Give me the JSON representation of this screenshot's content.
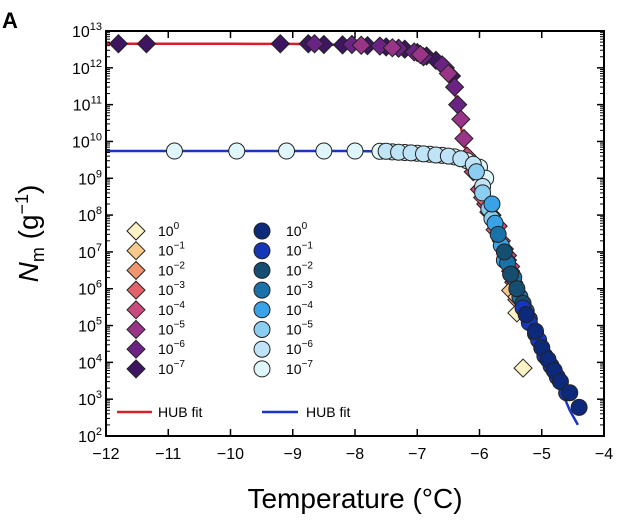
{
  "panel_label": "A",
  "chart_data": {
    "type": "scatter",
    "xlabel": "Temperature (°C)",
    "ylabel": {
      "symbol": "N",
      "subscript": "m",
      "unit_open": " (g",
      "unit_exp": "−1",
      "unit_close": ")"
    },
    "xlim": [
      -12,
      -4
    ],
    "ylim_log10": [
      2,
      13
    ],
    "y_scale": "log",
    "x_ticks": [
      -12,
      -11,
      -10,
      -9,
      -8,
      -7,
      -6,
      -5,
      -4
    ],
    "x_tick_labels": [
      "−12",
      "−11",
      "−10",
      "−9",
      "−8",
      "−7",
      "−6",
      "−5",
      "−4"
    ],
    "y_ticks_exp": [
      2,
      3,
      4,
      5,
      6,
      7,
      8,
      9,
      10,
      11,
      12,
      13
    ],
    "y_tick_labels": [
      {
        "base": "10",
        "exp": "2"
      },
      {
        "base": "10",
        "exp": "3"
      },
      {
        "base": "10",
        "exp": "4"
      },
      {
        "base": "10",
        "exp": "5"
      },
      {
        "base": "10",
        "exp": "6"
      },
      {
        "base": "10",
        "exp": "7"
      },
      {
        "base": "10",
        "exp": "8"
      },
      {
        "base": "10",
        "exp": "9"
      },
      {
        "base": "10",
        "exp": "10"
      },
      {
        "base": "10",
        "exp": "11"
      },
      {
        "base": "10",
        "exp": "12"
      },
      {
        "base": "10",
        "exp": "13"
      }
    ],
    "grid": false,
    "legend_position": "bottom-left",
    "legend_left": [
      {
        "base": "10",
        "exp": "0",
        "color": "#fdf3c4"
      },
      {
        "base": "10",
        "exp": "−1",
        "color": "#f8c98a"
      },
      {
        "base": "10",
        "exp": "−2",
        "color": "#f0956e"
      },
      {
        "base": "10",
        "exp": "−3",
        "color": "#e3636a"
      },
      {
        "base": "10",
        "exp": "−4",
        "color": "#c94a7c"
      },
      {
        "base": "10",
        "exp": "−5",
        "color": "#9a3488"
      },
      {
        "base": "10",
        "exp": "−6",
        "color": "#6a2383"
      },
      {
        "base": "10",
        "exp": "−7",
        "color": "#3d1560"
      }
    ],
    "legend_right": [
      {
        "base": "10",
        "exp": "0",
        "color": "#0d2a7a"
      },
      {
        "base": "10",
        "exp": "−1",
        "color": "#1636b8"
      },
      {
        "base": "10",
        "exp": "−2",
        "color": "#154e70"
      },
      {
        "base": "10",
        "exp": "−3",
        "color": "#1a72a8"
      },
      {
        "base": "10",
        "exp": "−4",
        "color": "#3aa2e6"
      },
      {
        "base": "10",
        "exp": "−5",
        "color": "#8ccdf2"
      },
      {
        "base": "10",
        "exp": "−6",
        "color": "#bfe3f7"
      },
      {
        "base": "10",
        "exp": "−7",
        "color": "#dff7fb"
      }
    ],
    "fit_legend": [
      {
        "label": "HUB fit",
        "color": "#d6202a"
      },
      {
        "label": "HUB fit",
        "color": "#1b33c8"
      }
    ],
    "series": [
      {
        "marker": "diamond",
        "color": "#3d1560",
        "points": [
          [
            -11.8,
            4500000000000.0
          ],
          [
            -11.35,
            4500000000000.0
          ],
          [
            -9.2,
            4500000000000.0
          ],
          [
            -8.75,
            4500000000000.0
          ],
          [
            -8.5,
            4300000000000.0
          ],
          [
            -8.2,
            4200000000000.0
          ],
          [
            -7.8,
            4000000000000.0
          ],
          [
            -7.5,
            3700000000000.0
          ],
          [
            -7.2,
            3200000000000.0
          ],
          [
            -7.0,
            2600000000000.0
          ],
          [
            -6.85,
            2100000000000.0
          ],
          [
            -6.7,
            1600000000000.0
          ],
          [
            -6.55,
            1000000000000.0
          ],
          [
            -6.45,
            600000000000.0
          ]
        ]
      },
      {
        "marker": "diamond",
        "color": "#6a2383",
        "points": [
          [
            -8.65,
            4500000000000.0
          ],
          [
            -8.05,
            4300000000000.0
          ],
          [
            -7.6,
            3900000000000.0
          ],
          [
            -7.3,
            3400000000000.0
          ],
          [
            -7.05,
            2700000000000.0
          ],
          [
            -6.9,
            2000000000000.0
          ],
          [
            -6.6,
            1200000000000.0
          ],
          [
            -6.4,
            300000000000.0
          ],
          [
            -6.35,
            100000000000.0
          ]
        ]
      },
      {
        "marker": "diamond",
        "color": "#9a3488",
        "points": [
          [
            -7.9,
            4100000000000.0
          ],
          [
            -7.4,
            3500000000000.0
          ],
          [
            -6.95,
            2300000000000.0
          ],
          [
            -6.5,
            700000000000.0
          ],
          [
            -6.3,
            40000000000.0
          ],
          [
            -6.25,
            12000000000.0
          ]
        ]
      },
      {
        "marker": "diamond",
        "color": "#c94a7c",
        "points": [
          [
            -6.2,
            4000000000.0
          ],
          [
            -6.1,
            1500000000.0
          ],
          [
            -6.0,
            500000000.0
          ],
          [
            -5.9,
            200000000.0
          ],
          [
            -5.8,
            100000000.0
          ],
          [
            -5.7,
            50000000.0
          ],
          [
            -5.65,
            20000000.0
          ],
          [
            -5.55,
            8000000.0
          ],
          [
            -5.5,
            4000000.0
          ]
        ]
      },
      {
        "marker": "diamond",
        "color": "#e3636a",
        "points": [
          [
            -5.95,
            300000000.0
          ],
          [
            -5.85,
            120000000.0
          ],
          [
            -5.75,
            40000000.0
          ],
          [
            -5.6,
            12000000.0
          ],
          [
            -5.5,
            3000000.0
          ],
          [
            -5.45,
            1500000.0
          ]
        ]
      },
      {
        "marker": "diamond",
        "color": "#f0956e",
        "points": [
          [
            -5.55,
            6000000.0
          ],
          [
            -5.45,
            1000000.0
          ],
          [
            -5.4,
            500000.0
          ]
        ]
      },
      {
        "marker": "diamond",
        "color": "#f8c98a",
        "points": [
          [
            -5.5,
            900000.0
          ],
          [
            -5.4,
            600000.0
          ]
        ]
      },
      {
        "marker": "diamond",
        "color": "#fdf3c4",
        "points": [
          [
            -5.4,
            220000.0
          ],
          [
            -5.3,
            7000.0
          ]
        ]
      },
      {
        "marker": "circle",
        "color": "#dff7fb",
        "points": [
          [
            -10.9,
            5500000000.0
          ],
          [
            -9.9,
            5500000000.0
          ],
          [
            -9.1,
            5500000000.0
          ],
          [
            -8.5,
            5500000000.0
          ],
          [
            -8.0,
            5500000000.0
          ],
          [
            -7.6,
            5400000000.0
          ],
          [
            -7.4,
            5200000000.0
          ],
          [
            -7.2,
            5000000000.0
          ],
          [
            -7.0,
            4800000000.0
          ],
          [
            -6.8,
            4500000000.0
          ],
          [
            -6.6,
            4200000000.0
          ],
          [
            -6.4,
            3800000000.0
          ],
          [
            -6.2,
            3000000000.0
          ],
          [
            -6.0,
            2000000000.0
          ],
          [
            -5.9,
            1000000000.0
          ]
        ]
      },
      {
        "marker": "circle",
        "color": "#bfe3f7",
        "points": [
          [
            -7.5,
            5400000000.0
          ],
          [
            -7.3,
            5100000000.0
          ],
          [
            -7.1,
            4900000000.0
          ],
          [
            -6.9,
            4600000000.0
          ],
          [
            -6.7,
            4300000000.0
          ],
          [
            -6.5,
            4000000000.0
          ],
          [
            -6.3,
            3400000000.0
          ],
          [
            -6.1,
            2400000000.0
          ],
          [
            -5.95,
            600000000.0
          ]
        ]
      },
      {
        "marker": "circle",
        "color": "#8ccdf2",
        "points": [
          [
            -6.05,
            1500000000.0
          ],
          [
            -5.95,
            400000000.0
          ],
          [
            -5.85,
            150000000.0
          ],
          [
            -5.8,
            80000000.0
          ]
        ]
      },
      {
        "marker": "circle",
        "color": "#3aa2e6",
        "points": [
          [
            -5.8,
            200000000.0
          ],
          [
            -5.75,
            60000000.0
          ],
          [
            -5.65,
            15000000.0
          ],
          [
            -5.6,
            6000000.0
          ]
        ]
      },
      {
        "marker": "circle",
        "color": "#1a72a8",
        "points": [
          [
            -5.7,
            30000000.0
          ],
          [
            -5.55,
            5000000.0
          ],
          [
            -5.45,
            2000000.0
          ],
          [
            -5.35,
            600000.0
          ],
          [
            -5.25,
            250000.0
          ]
        ]
      },
      {
        "marker": "circle",
        "color": "#154e70",
        "points": [
          [
            -5.6,
            10000000.0
          ],
          [
            -5.5,
            2500000.0
          ],
          [
            -5.4,
            1000000.0
          ],
          [
            -5.3,
            400000.0
          ],
          [
            -5.2,
            150000.0
          ],
          [
            -5.1,
            60000.0
          ]
        ]
      },
      {
        "marker": "circle",
        "color": "#1636b8",
        "points": [
          [
            -5.3,
            300000.0
          ],
          [
            -5.2,
            120000.0
          ],
          [
            -5.05,
            40000.0
          ],
          [
            -4.95,
            15000.0
          ],
          [
            -4.85,
            8000.0
          ],
          [
            -4.75,
            4000.0
          ],
          [
            -4.6,
            1500.0
          ]
        ]
      },
      {
        "marker": "circle",
        "color": "#0d2a7a",
        "points": [
          [
            -5.25,
            200000.0
          ],
          [
            -5.1,
            70000.0
          ],
          [
            -5.0,
            25000.0
          ],
          [
            -4.9,
            12000.0
          ],
          [
            -4.8,
            6000.0
          ],
          [
            -4.7,
            3000.0
          ],
          [
            -4.55,
            1500.0
          ],
          [
            -4.4,
            600.0
          ]
        ]
      }
    ],
    "fits": [
      {
        "color": "#d6202a",
        "points": [
          [
            -12,
            4500000000000.0
          ],
          [
            -10,
            4500000000000.0
          ],
          [
            -9,
            4450000000000.0
          ],
          [
            -8.5,
            4300000000000.0
          ],
          [
            -8.0,
            4100000000000.0
          ],
          [
            -7.5,
            3700000000000.0
          ],
          [
            -7.2,
            3200000000000.0
          ],
          [
            -7.0,
            2700000000000.0
          ],
          [
            -6.8,
            2100000000000.0
          ],
          [
            -6.6,
            1400000000000.0
          ],
          [
            -6.5,
            800000000000.0
          ],
          [
            -6.4,
            250000000000.0
          ],
          [
            -6.3,
            25000000000.0
          ],
          [
            -6.22,
            6000000000.0
          ]
        ]
      },
      {
        "color": "#1b33c8",
        "points": [
          [
            -12,
            5500000000.0
          ],
          [
            -8,
            5500000000.0
          ],
          [
            -7.5,
            5300000000.0
          ],
          [
            -7.0,
            4900000000.0
          ],
          [
            -6.6,
            4300000000.0
          ],
          [
            -6.3,
            3500000000.0
          ],
          [
            -6.1,
            2500000000.0
          ],
          [
            -5.95,
            1200000000.0
          ],
          [
            -5.85,
            400000000.0
          ],
          [
            -5.75,
            100000000.0
          ],
          [
            -5.6,
            15000000.0
          ],
          [
            -5.45,
            2500000.0
          ],
          [
            -5.3,
            400000.0
          ],
          [
            -5.1,
            60000.0
          ],
          [
            -4.9,
            10000.0
          ],
          [
            -4.7,
            2000.0
          ],
          [
            -4.55,
            500.0
          ],
          [
            -4.42,
            200.0
          ]
        ]
      }
    ]
  }
}
